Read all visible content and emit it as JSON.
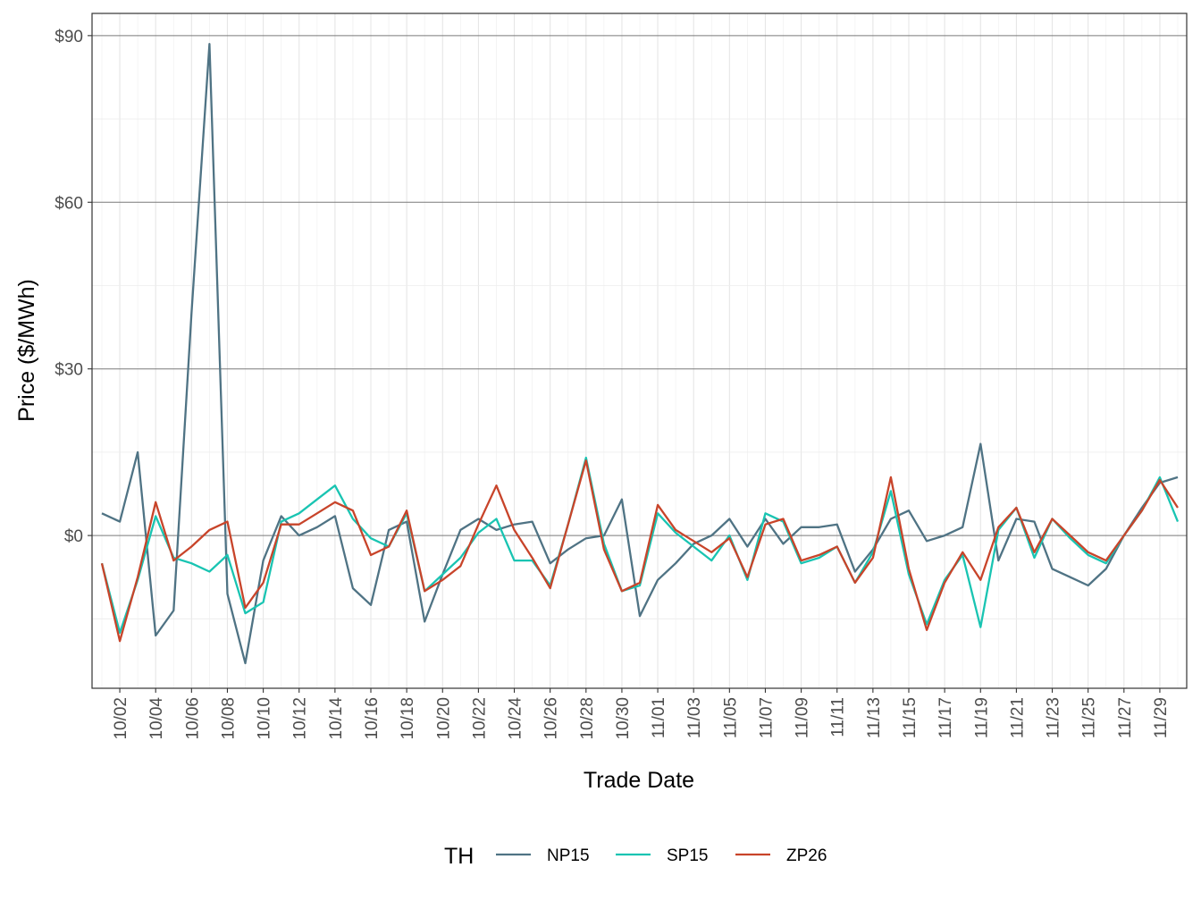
{
  "chart_data": {
    "type": "line",
    "xlabel": "Trade Date",
    "ylabel": "Price ($/MWh)",
    "ylim": [
      -27.5,
      94
    ],
    "y_ticks": [
      0,
      30,
      60,
      90
    ],
    "y_tick_labels": [
      "$0",
      "$30",
      "$60",
      "$90"
    ],
    "x_ticks": [
      "10/02",
      "10/04",
      "10/06",
      "10/08",
      "10/10",
      "10/12",
      "10/14",
      "10/16",
      "10/18",
      "10/20",
      "10/22",
      "10/24",
      "10/26",
      "10/28",
      "10/30",
      "11/01",
      "11/03",
      "11/05",
      "11/07",
      "11/09",
      "11/11",
      "11/13",
      "11/15",
      "11/17",
      "11/19",
      "11/21",
      "11/23",
      "11/25",
      "11/27",
      "11/29"
    ],
    "grid": true,
    "legend": {
      "title": "TH",
      "position": "bottom"
    },
    "x": [
      "10/01",
      "10/02",
      "10/03",
      "10/04",
      "10/05",
      "10/06",
      "10/07",
      "10/08",
      "10/09",
      "10/10",
      "10/11",
      "10/12",
      "10/13",
      "10/14",
      "10/15",
      "10/16",
      "10/17",
      "10/18",
      "10/19",
      "10/20",
      "10/21",
      "10/22",
      "10/23",
      "10/24",
      "10/25",
      "10/26",
      "10/27",
      "10/28",
      "10/29",
      "10/30",
      "10/31",
      "11/01",
      "11/02",
      "11/03",
      "11/04",
      "11/05",
      "11/06",
      "11/07",
      "11/08",
      "11/09",
      "11/10",
      "11/11",
      "11/12",
      "11/13",
      "11/14",
      "11/15",
      "11/16",
      "11/17",
      "11/18",
      "11/19",
      "11/20",
      "11/21",
      "11/22",
      "11/23",
      "11/24",
      "11/25",
      "11/26",
      "11/27",
      "11/28",
      "11/29",
      "11/30"
    ],
    "series": [
      {
        "name": "NP15",
        "color": "#4f7384",
        "values": [
          4,
          2.5,
          15,
          -18,
          -13.5,
          40,
          88.5,
          -10.5,
          -23,
          -4.5,
          3.5,
          0,
          1.5,
          3.5,
          -9.5,
          -12.5,
          1,
          2.5,
          -15.5,
          -7,
          1,
          3,
          1,
          2,
          2.5,
          -5,
          -2.5,
          -0.5,
          0,
          6.5,
          -14.5,
          -8,
          -5,
          -1.5,
          0,
          3,
          -2,
          3,
          -1.5,
          1.5,
          1.5,
          2,
          -6.5,
          -2.5,
          3,
          4.5,
          -1,
          0,
          1.5,
          16.5,
          -4.5,
          3,
          2.5,
          -6,
          -7.5,
          -9,
          -6,
          0,
          5,
          9.5,
          10.5
        ]
      },
      {
        "name": "SP15",
        "color": "#19c4b2",
        "values": [
          -5,
          -17.5,
          -8,
          3.5,
          -4,
          -5,
          -6.5,
          -3.5,
          -14,
          -12,
          2.5,
          4,
          6.5,
          9,
          3,
          -0.5,
          -2,
          4,
          -10,
          -7,
          -4,
          0.5,
          3,
          -4.5,
          -4.5,
          -9,
          2,
          14,
          -1.5,
          -10,
          -9,
          4,
          0.5,
          -2,
          -4.5,
          0,
          -8,
          4,
          2.5,
          -5,
          -4,
          -2,
          -8.5,
          -3,
          8,
          -7,
          -16,
          -8,
          -3.5,
          -16.5,
          1,
          5,
          -4,
          3,
          -0.5,
          -3.5,
          -5,
          0,
          4.5,
          10.5,
          2.5
        ]
      },
      {
        "name": "ZP26",
        "color": "#c8442a",
        "values": [
          -5,
          -19,
          -7.5,
          6,
          -4.5,
          -2,
          1,
          2.5,
          -13,
          -8.5,
          2,
          2,
          4,
          6,
          4.5,
          -3.5,
          -2,
          4.5,
          -10,
          -8,
          -5.5,
          2,
          9,
          1,
          -4,
          -9.5,
          2,
          13.5,
          -2.5,
          -10,
          -8.5,
          5.5,
          1,
          -1,
          -3,
          -0.5,
          -7.5,
          2,
          3,
          -4.5,
          -3.5,
          -2,
          -8.5,
          -4,
          10.5,
          -6,
          -17,
          -8.5,
          -3,
          -8,
          1.5,
          5,
          -3,
          3,
          0,
          -3,
          -4.5,
          0,
          4.5,
          10,
          5
        ]
      }
    ]
  }
}
